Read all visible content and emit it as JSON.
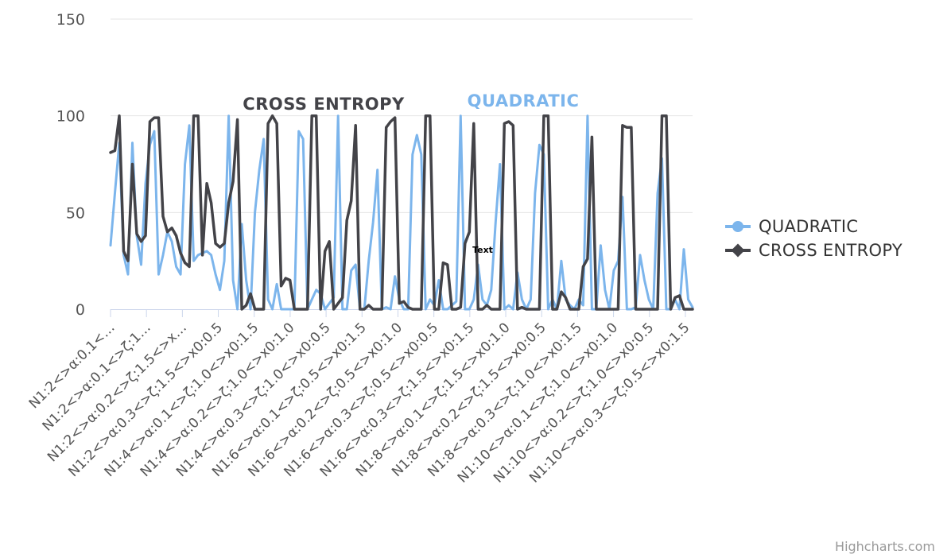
{
  "chart_data": {
    "type": "line",
    "title": "",
    "xlabel": "",
    "ylabel": "",
    "ylim": [
      0,
      150
    ],
    "yticks": [
      0,
      50,
      100,
      150
    ],
    "grid": true,
    "legend_position": "right",
    "x_tick_labels": [
      "N1:2<>α:0.1<…",
      "N1:2<>α:0.1<>ζ:1…",
      "N1:2<>α:0.2<>ζ:1.5<>x…",
      "N1:2<>α:0.3<>ζ:1.5<>x0:0.5",
      "N1:4<>α:0.1<>ζ:1.0<>x0:1.5",
      "N1:4<>α:0.2<>ζ:1.0<>x0:1.0",
      "N1:4<>α:0.3<>ζ:1.0<>x0:0.5",
      "N1:6<>α:0.1<>ζ:0.5<>x0:1.5",
      "N1:6<>α:0.2<>ζ:0.5<>x0:1.0",
      "N1:6<>α:0.3<>ζ:0.5<>x0:0.5",
      "N1:6<>α:0.3<>ζ:1.5<>x0:1.5",
      "N1:8<>α:0.1<>ζ:1.5<>x0:1.0",
      "N1:8<>α:0.2<>ζ:1.5<>x0:0.5",
      "N1:8<>α:0.3<>ζ:1.0<>x0:1.5",
      "N1:10<>α:0.1<>ζ:1.0<>x0:1.0",
      "N1:10<>α:0.2<>ζ:1.0<>x0:0.5",
      "N1:10<>α:0.3<>ζ:0.5<>x0:1.5"
    ],
    "series": [
      {
        "name": "QUADRATIC",
        "color": "#7cb5ec",
        "marker": "circle",
        "values": [
          33,
          60,
          86,
          28,
          18,
          86,
          38,
          23,
          65,
          85,
          92,
          18,
          28,
          40,
          35,
          22,
          18,
          75,
          95,
          25,
          28,
          29,
          30,
          28,
          18,
          10,
          25,
          100,
          15,
          0,
          44,
          15,
          0,
          50,
          72,
          88,
          5,
          0,
          13,
          0,
          0,
          0,
          0,
          92,
          88,
          0,
          5,
          10,
          8,
          0,
          3,
          6,
          100,
          0,
          0,
          20,
          23,
          0,
          0,
          25,
          45,
          72,
          0,
          1,
          0,
          17,
          5,
          0,
          0,
          80,
          90,
          80,
          0,
          5,
          2,
          15,
          0,
          0,
          2,
          4,
          100,
          0,
          0,
          5,
          23,
          5,
          2,
          10,
          45,
          75,
          0,
          2,
          0,
          19,
          5,
          0,
          5,
          60,
          85,
          80,
          0,
          5,
          0,
          25,
          5,
          2,
          0,
          5,
          2,
          100,
          0,
          0,
          33,
          10,
          0,
          20,
          25,
          58,
          0,
          0,
          1,
          28,
          15,
          5,
          0,
          60,
          78,
          0,
          0,
          5,
          0,
          31,
          5,
          1
        ]
      },
      {
        "name": "CROSS ENTROPY",
        "color": "#434348",
        "marker": "diamond",
        "values": [
          81,
          82,
          100,
          30,
          25,
          75,
          39,
          35,
          38,
          97,
          99,
          99,
          48,
          40,
          42,
          38,
          29,
          24,
          22,
          100,
          100,
          28,
          65,
          55,
          34,
          32,
          34,
          55,
          66,
          98,
          0,
          2,
          8,
          0,
          0,
          0,
          96,
          100,
          96,
          12,
          16,
          15,
          0,
          0,
          0,
          0,
          100,
          100,
          0,
          30,
          35,
          0,
          3,
          6,
          46,
          56,
          95,
          0,
          0,
          2,
          0,
          0,
          0,
          94,
          97,
          99,
          3,
          4,
          1,
          0,
          0,
          0,
          100,
          100,
          0,
          0,
          24,
          23,
          0,
          0,
          1,
          34,
          40,
          96,
          0,
          0,
          2,
          0,
          0,
          0,
          96,
          97,
          95,
          0,
          1,
          0,
          0,
          0,
          0,
          100,
          100,
          0,
          0,
          9,
          6,
          0,
          0,
          0,
          22,
          26,
          89,
          0,
          0,
          0,
          0,
          0,
          0,
          95,
          94,
          94,
          0,
          0,
          0,
          0,
          0,
          0,
          100,
          100,
          0,
          6,
          7,
          0,
          0,
          0
        ]
      }
    ],
    "annotations": [
      {
        "text": "CROSS ENTROPY",
        "color": "#434348"
      },
      {
        "text": "QUADRATIC",
        "color": "#7cb5ec"
      },
      {
        "text": "Text",
        "color": "#000000"
      }
    ],
    "credit": "Highcharts.com"
  }
}
